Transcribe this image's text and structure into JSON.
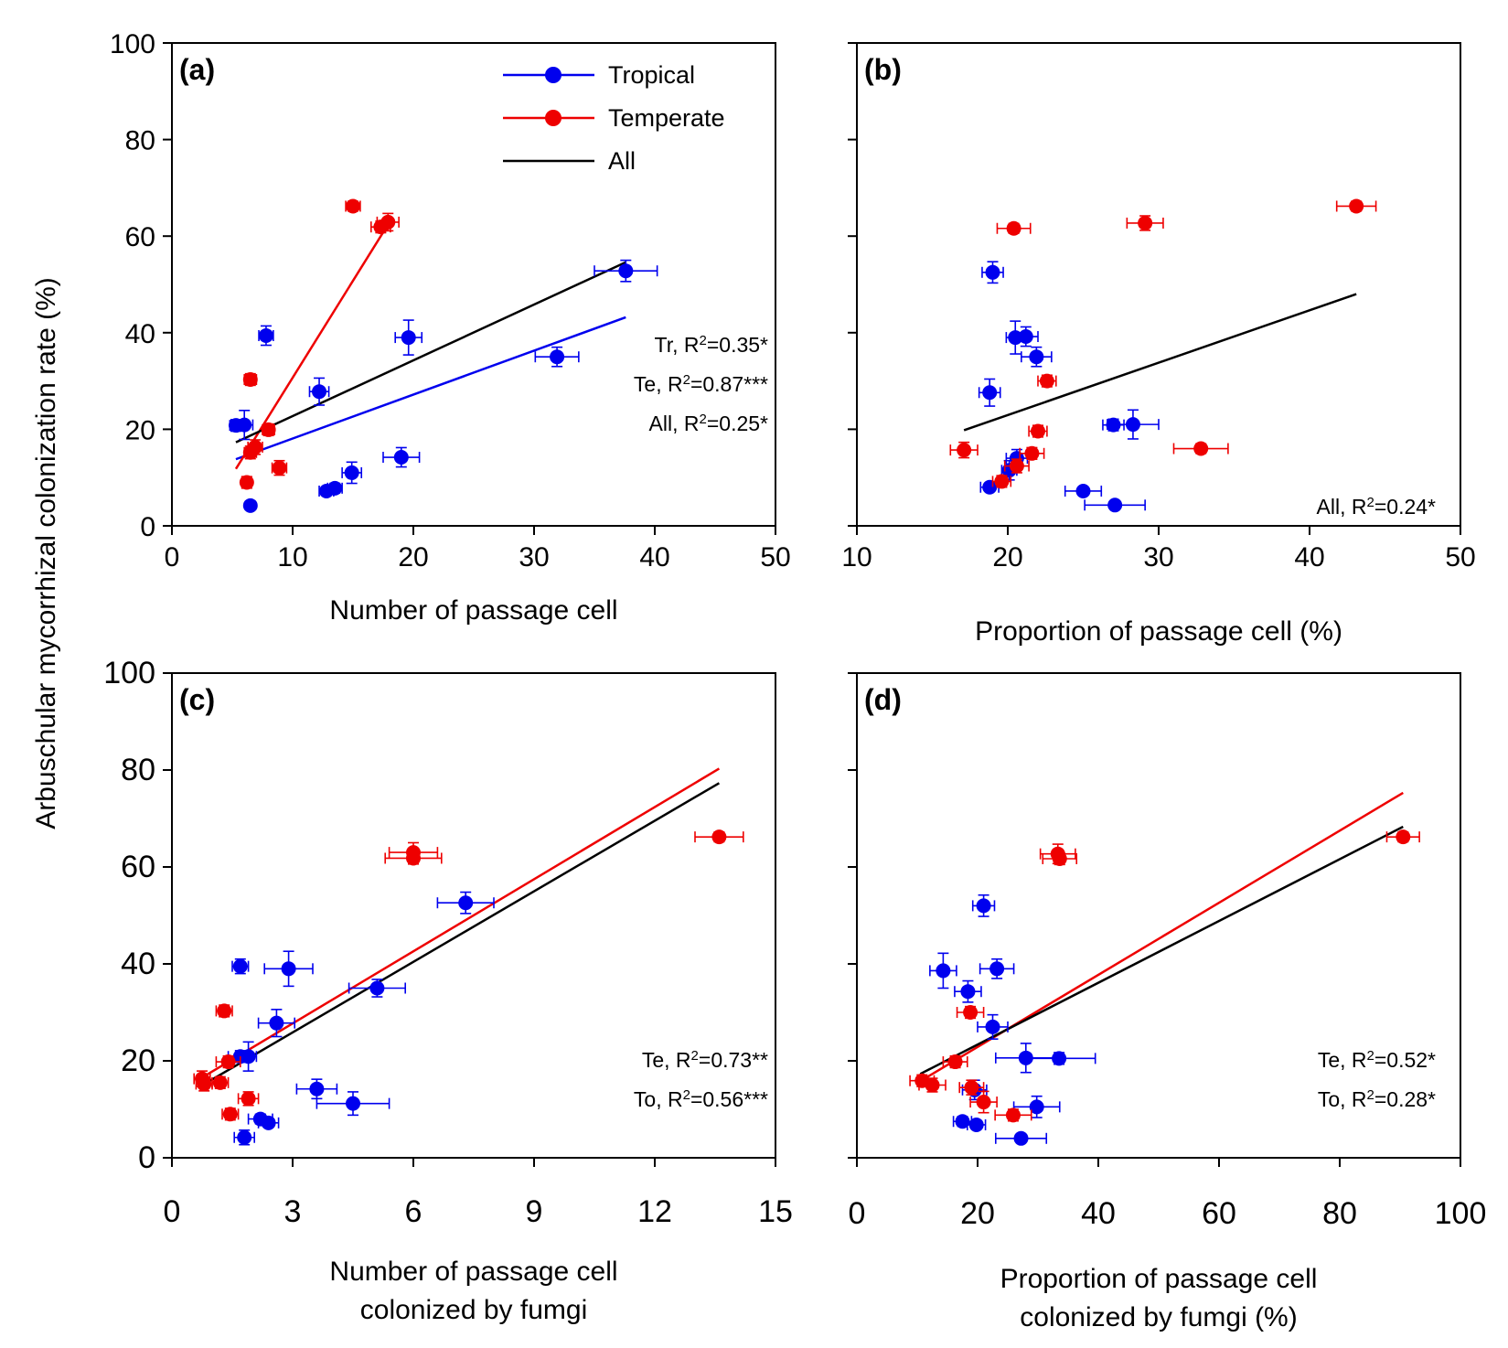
{
  "colors": {
    "tropical": "#0000ee",
    "temperate": "#ee0000",
    "all": "#000000"
  },
  "ylabel": "Arbuschular mycorrhizal colonization rate (%)",
  "legend": {
    "tropical": "Tropical",
    "temperate": "Temperate",
    "all": "All"
  },
  "chart_data": [
    {
      "id": "a",
      "type": "scatter",
      "panel_label": "(a)",
      "xlabel_lines": [
        "Number of passage cell"
      ],
      "ylabel": "Arbuschular mycorrhizal colonization rate (%)",
      "xlim": [
        0,
        50
      ],
      "ylim": [
        0,
        100
      ],
      "xticks": [
        0,
        10,
        20,
        30,
        40,
        50
      ],
      "yticks": [
        0,
        20,
        40,
        60,
        80,
        100
      ],
      "show_yticklabels": true,
      "legend": true,
      "annotations": [
        {
          "prefix": "Tr,  R",
          "sup": "2",
          "suffix": "=0.35*"
        },
        {
          "prefix": "Te, R",
          "sup": "2",
          "suffix": "=0.87***"
        },
        {
          "prefix": "All, R",
          "sup": "2",
          "suffix": "=0.25*"
        }
      ],
      "series": [
        {
          "name": "Tropical",
          "color_key": "tropical",
          "points": [
            {
              "x": 37.6,
              "y": 52.8,
              "xerr": 2.6,
              "yerr": 2.2
            },
            {
              "x": 7.8,
              "y": 39.4,
              "xerr": 0.6,
              "yerr": 2.0
            },
            {
              "x": 19.6,
              "y": 39.0,
              "xerr": 1.1,
              "yerr": 3.6
            },
            {
              "x": 31.9,
              "y": 35.0,
              "xerr": 1.8,
              "yerr": 2.0
            },
            {
              "x": 12.2,
              "y": 27.8,
              "xerr": 0.8,
              "yerr": 2.8
            },
            {
              "x": 5.3,
              "y": 20.8,
              "xerr": 0.5,
              "yerr": 1.2
            },
            {
              "x": 6.0,
              "y": 20.9,
              "xerr": 0.7,
              "yerr": 3.0
            },
            {
              "x": 19.0,
              "y": 14.2,
              "xerr": 1.5,
              "yerr": 2.0
            },
            {
              "x": 14.9,
              "y": 11.0,
              "xerr": 0.8,
              "yerr": 2.2
            },
            {
              "x": 12.8,
              "y": 7.2,
              "xerr": 0.6,
              "yerr": 0.8
            },
            {
              "x": 13.5,
              "y": 7.8,
              "xerr": 0.6,
              "yerr": 1.0
            },
            {
              "x": 6.5,
              "y": 4.2,
              "xerr": 0.3,
              "yerr": 0.5
            }
          ],
          "fit": [
            [
              5.3,
              13.8
            ],
            [
              37.6,
              43.2
            ]
          ]
        },
        {
          "name": "Temperate",
          "color_key": "temperate",
          "points": [
            {
              "x": 15.0,
              "y": 66.2,
              "xerr": 0.6,
              "yerr": 1.0
            },
            {
              "x": 17.9,
              "y": 62.9,
              "xerr": 0.9,
              "yerr": 1.8
            },
            {
              "x": 17.3,
              "y": 61.9,
              "xerr": 0.8,
              "yerr": 1.2
            },
            {
              "x": 6.5,
              "y": 30.3,
              "xerr": 0.5,
              "yerr": 1.2
            },
            {
              "x": 8.0,
              "y": 19.9,
              "xerr": 0.5,
              "yerr": 1.2
            },
            {
              "x": 6.9,
              "y": 16.3,
              "xerr": 0.6,
              "yerr": 1.5
            },
            {
              "x": 6.5,
              "y": 15.2,
              "xerr": 0.5,
              "yerr": 1.3
            },
            {
              "x": 8.9,
              "y": 12.0,
              "xerr": 0.6,
              "yerr": 1.5
            },
            {
              "x": 6.2,
              "y": 9.0,
              "xerr": 0.4,
              "yerr": 1.2
            }
          ],
          "fit": [
            [
              5.3,
              11.8
            ],
            [
              17.9,
              62.4
            ]
          ]
        },
        {
          "name": "All",
          "color_key": "all",
          "points": [],
          "fit": [
            [
              5.3,
              17.3
            ],
            [
              37.6,
              54.6
            ]
          ]
        }
      ]
    },
    {
      "id": "b",
      "type": "scatter",
      "panel_label": "(b)",
      "xlabel_lines": [
        "Proportion of passage cell (%)"
      ],
      "xlim": [
        10,
        50
      ],
      "ylim": [
        0,
        100
      ],
      "xticks": [
        10,
        20,
        30,
        40,
        50
      ],
      "yticks": [
        0,
        20,
        40,
        60,
        80,
        100
      ],
      "show_yticklabels": false,
      "legend": false,
      "annotations": [
        {
          "prefix": "All, R",
          "sup": "2",
          "suffix": "=0.24*"
        }
      ],
      "series": [
        {
          "name": "Tropical",
          "color_key": "tropical",
          "points": [
            {
              "x": 19.0,
              "y": 52.5,
              "xerr": 0.7,
              "yerr": 2.2
            },
            {
              "x": 20.5,
              "y": 39.0,
              "xerr": 0.6,
              "yerr": 3.4
            },
            {
              "x": 21.2,
              "y": 39.2,
              "xerr": 0.8,
              "yerr": 2.0
            },
            {
              "x": 21.9,
              "y": 35.0,
              "xerr": 1.0,
              "yerr": 2.0
            },
            {
              "x": 18.8,
              "y": 27.6,
              "xerr": 0.7,
              "yerr": 2.8
            },
            {
              "x": 27.0,
              "y": 20.9,
              "xerr": 0.7,
              "yerr": 1.2
            },
            {
              "x": 28.3,
              "y": 21.0,
              "xerr": 1.7,
              "yerr": 3.0
            },
            {
              "x": 20.6,
              "y": 14.0,
              "xerr": 0.7,
              "yerr": 1.8
            },
            {
              "x": 20.1,
              "y": 11.5,
              "xerr": 0.5,
              "yerr": 2.0
            },
            {
              "x": 18.8,
              "y": 8.0,
              "xerr": 0.6,
              "yerr": 0.8
            },
            {
              "x": 25.0,
              "y": 7.2,
              "xerr": 1.2,
              "yerr": 0.8
            },
            {
              "x": 27.1,
              "y": 4.3,
              "xerr": 2.0,
              "yerr": 0.5
            }
          ],
          "fit": null
        },
        {
          "name": "Temperate",
          "color_key": "temperate",
          "points": [
            {
              "x": 43.1,
              "y": 66.2,
              "xerr": 1.3,
              "yerr": 1.0
            },
            {
              "x": 29.1,
              "y": 62.7,
              "xerr": 1.2,
              "yerr": 1.5
            },
            {
              "x": 20.4,
              "y": 61.6,
              "xerr": 1.1,
              "yerr": 1.0
            },
            {
              "x": 22.6,
              "y": 30.0,
              "xerr": 0.6,
              "yerr": 1.2
            },
            {
              "x": 22.0,
              "y": 19.6,
              "xerr": 0.6,
              "yerr": 1.2
            },
            {
              "x": 17.1,
              "y": 15.7,
              "xerr": 0.9,
              "yerr": 1.6
            },
            {
              "x": 32.8,
              "y": 16.0,
              "xerr": 1.8,
              "yerr": 1.0
            },
            {
              "x": 21.6,
              "y": 15.0,
              "xerr": 0.8,
              "yerr": 1.2
            },
            {
              "x": 20.6,
              "y": 12.4,
              "xerr": 0.8,
              "yerr": 1.4
            },
            {
              "x": 19.6,
              "y": 9.2,
              "xerr": 0.6,
              "yerr": 1.2
            }
          ],
          "fit": null
        },
        {
          "name": "All",
          "color_key": "all",
          "points": [],
          "fit": [
            [
              17.1,
              19.8
            ],
            [
              43.1,
              48.0
            ]
          ]
        }
      ]
    },
    {
      "id": "c",
      "type": "scatter",
      "panel_label": "(c)",
      "xlabel_lines": [
        "Number of passage cell",
        "colonized by fumgi"
      ],
      "xlim": [
        0,
        15
      ],
      "ylim": [
        0,
        100
      ],
      "xticks": [
        0,
        3,
        6,
        9,
        12,
        15
      ],
      "yticks": [
        0,
        20,
        40,
        60,
        80,
        100
      ],
      "show_yticklabels": true,
      "legend": false,
      "annotations": [
        {
          "prefix": "Te, R",
          "sup": "2",
          "suffix": "=0.73**"
        },
        {
          "prefix": "To, R",
          "sup": "2",
          "suffix": "=0.56***"
        }
      ],
      "series": [
        {
          "name": "Tropical",
          "color_key": "tropical",
          "points": [
            {
              "x": 7.3,
              "y": 52.6,
              "xerr": 0.7,
              "yerr": 2.2
            },
            {
              "x": 1.7,
              "y": 39.5,
              "xerr": 0.2,
              "yerr": 1.5
            },
            {
              "x": 2.9,
              "y": 39.0,
              "xerr": 0.6,
              "yerr": 3.6
            },
            {
              "x": 5.1,
              "y": 35.0,
              "xerr": 0.7,
              "yerr": 1.8
            },
            {
              "x": 2.6,
              "y": 27.8,
              "xerr": 0.45,
              "yerr": 2.8
            },
            {
              "x": 1.7,
              "y": 20.9,
              "xerr": 0.3,
              "yerr": 1.2
            },
            {
              "x": 1.9,
              "y": 20.9,
              "xerr": 0.2,
              "yerr": 3.0
            },
            {
              "x": 3.6,
              "y": 14.2,
              "xerr": 0.5,
              "yerr": 2.0
            },
            {
              "x": 4.5,
              "y": 11.2,
              "xerr": 0.9,
              "yerr": 2.4
            },
            {
              "x": 2.2,
              "y": 8.0,
              "xerr": 0.3,
              "yerr": 1.0
            },
            {
              "x": 2.4,
              "y": 7.2,
              "xerr": 0.25,
              "yerr": 0.8
            },
            {
              "x": 1.8,
              "y": 4.2,
              "xerr": 0.25,
              "yerr": 1.5
            }
          ],
          "fit": null
        },
        {
          "name": "Temperate",
          "color_key": "temperate",
          "points": [
            {
              "x": 13.6,
              "y": 66.2,
              "xerr": 0.6,
              "yerr": 1.0
            },
            {
              "x": 6.0,
              "y": 63.0,
              "xerr": 0.6,
              "yerr": 2.0
            },
            {
              "x": 6.0,
              "y": 61.8,
              "xerr": 0.7,
              "yerr": 1.2
            },
            {
              "x": 1.3,
              "y": 30.3,
              "xerr": 0.2,
              "yerr": 1.2
            },
            {
              "x": 1.4,
              "y": 19.8,
              "xerr": 0.3,
              "yerr": 1.2
            },
            {
              "x": 0.75,
              "y": 16.3,
              "xerr": 0.2,
              "yerr": 1.6
            },
            {
              "x": 0.8,
              "y": 15.2,
              "xerr": 0.2,
              "yerr": 1.4
            },
            {
              "x": 1.2,
              "y": 15.5,
              "xerr": 0.2,
              "yerr": 1.2
            },
            {
              "x": 1.9,
              "y": 12.2,
              "xerr": 0.25,
              "yerr": 1.4
            },
            {
              "x": 1.45,
              "y": 9.0,
              "xerr": 0.2,
              "yerr": 1.2
            }
          ],
          "fit": [
            [
              0.7,
              16.3
            ],
            [
              13.6,
              80.3
            ]
          ]
        },
        {
          "name": "All",
          "color_key": "all",
          "points": [],
          "fit": [
            [
              0.7,
              14.7
            ],
            [
              13.6,
              77.3
            ]
          ]
        }
      ]
    },
    {
      "id": "d",
      "type": "scatter",
      "panel_label": "(d)",
      "xlabel_lines": [
        "Proportion of passage cell",
        "colonized by fumgi (%)"
      ],
      "xlim": [
        0,
        100
      ],
      "ylim": [
        0,
        100
      ],
      "xticks": [
        0,
        20,
        40,
        60,
        80,
        100
      ],
      "yticks": [
        0,
        20,
        40,
        60,
        80,
        100
      ],
      "show_yticklabels": false,
      "legend": false,
      "annotations": [
        {
          "prefix": "Te, R",
          "sup": "2",
          "suffix": "=0.52*"
        },
        {
          "prefix": "To, R",
          "sup": "2",
          "suffix": "=0.28*"
        }
      ],
      "series": [
        {
          "name": "Tropical",
          "color_key": "tropical",
          "points": [
            {
              "x": 21.0,
              "y": 52.0,
              "xerr": 1.8,
              "yerr": 2.2
            },
            {
              "x": 14.3,
              "y": 38.6,
              "xerr": 2.2,
              "yerr": 3.6
            },
            {
              "x": 23.2,
              "y": 39.0,
              "xerr": 2.8,
              "yerr": 2.0
            },
            {
              "x": 18.4,
              "y": 34.3,
              "xerr": 2.2,
              "yerr": 2.2
            },
            {
              "x": 22.5,
              "y": 27.0,
              "xerr": 2.5,
              "yerr": 2.5
            },
            {
              "x": 28.0,
              "y": 20.6,
              "xerr": 5.0,
              "yerr": 3.0
            },
            {
              "x": 33.5,
              "y": 20.5,
              "xerr": 6.0,
              "yerr": 1.2
            },
            {
              "x": 19.5,
              "y": 14.0,
              "xerr": 2.0,
              "yerr": 2.0
            },
            {
              "x": 29.8,
              "y": 10.5,
              "xerr": 3.8,
              "yerr": 2.2
            },
            {
              "x": 17.5,
              "y": 7.5,
              "xerr": 1.5,
              "yerr": 1.0
            },
            {
              "x": 19.8,
              "y": 6.8,
              "xerr": 1.5,
              "yerr": 0.8
            },
            {
              "x": 27.2,
              "y": 4.0,
              "xerr": 4.2,
              "yerr": 0.8
            }
          ],
          "fit": null
        },
        {
          "name": "Temperate",
          "color_key": "temperate",
          "points": [
            {
              "x": 90.5,
              "y": 66.2,
              "xerr": 2.7,
              "yerr": 1.0
            },
            {
              "x": 33.3,
              "y": 62.7,
              "xerr": 2.9,
              "yerr": 2.0
            },
            {
              "x": 33.6,
              "y": 61.7,
              "xerr": 2.8,
              "yerr": 1.2
            },
            {
              "x": 18.8,
              "y": 30.0,
              "xerr": 2.2,
              "yerr": 1.2
            },
            {
              "x": 16.3,
              "y": 19.8,
              "xerr": 2.0,
              "yerr": 1.2
            },
            {
              "x": 10.8,
              "y": 15.9,
              "xerr": 2.0,
              "yerr": 1.2
            },
            {
              "x": 12.5,
              "y": 15.0,
              "xerr": 2.2,
              "yerr": 1.4
            },
            {
              "x": 19.0,
              "y": 14.5,
              "xerr": 2.0,
              "yerr": 1.5
            },
            {
              "x": 21.0,
              "y": 11.5,
              "xerr": 2.2,
              "yerr": 2.2
            },
            {
              "x": 25.9,
              "y": 8.8,
              "xerr": 3.0,
              "yerr": 1.2
            }
          ],
          "fit": [
            [
              10.5,
              15.8
            ],
            [
              90.5,
              75.3
            ]
          ]
        },
        {
          "name": "All",
          "color_key": "all",
          "points": [],
          "fit": [
            [
              10.5,
              17.3
            ],
            [
              90.5,
              68.3
            ]
          ]
        }
      ]
    }
  ]
}
